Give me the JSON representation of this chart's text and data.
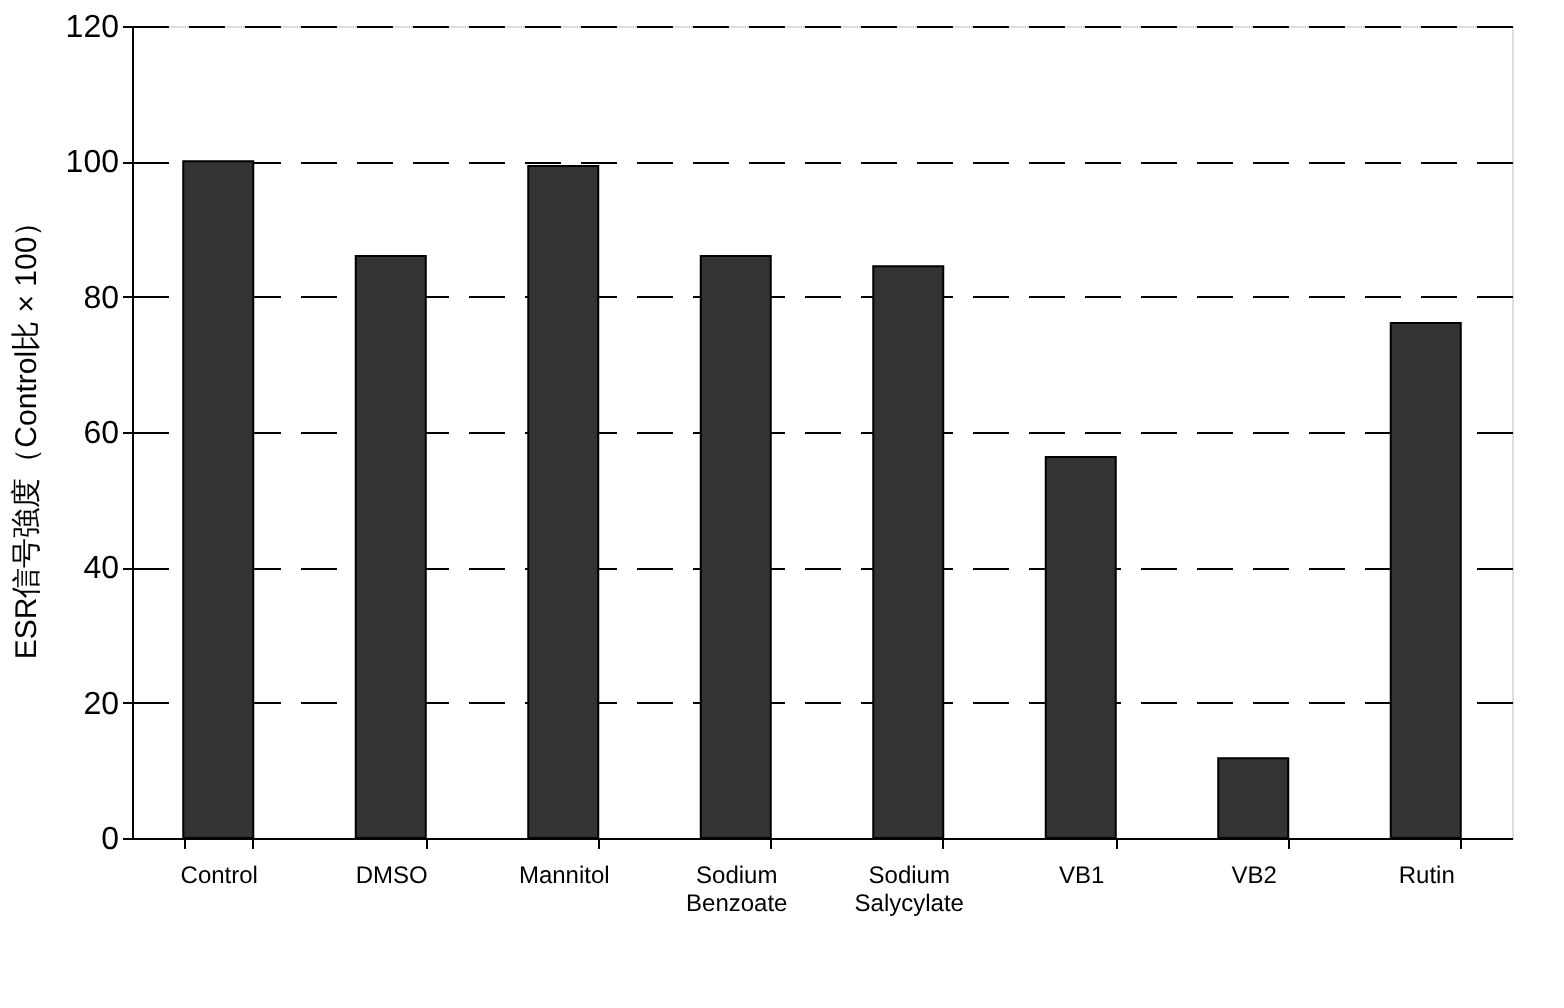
{
  "chart_data": {
    "type": "bar",
    "ylabel": "ESR信号強度（Control比 × 100）",
    "categories": [
      "Control",
      "DMSO",
      "Mannitol",
      "Sodium Benzoate",
      "Sodium Salycylate",
      "VB1",
      "VB2",
      "Rutin"
    ],
    "values": [
      100,
      86,
      99.3,
      86,
      84.5,
      56.3,
      11.8,
      76.1
    ],
    "color": "#333333",
    "ylim": [
      0,
      120
    ],
    "yticks": [
      0,
      20,
      40,
      60,
      80,
      100,
      120
    ],
    "grid": "y",
    "line_style": "dashed"
  }
}
